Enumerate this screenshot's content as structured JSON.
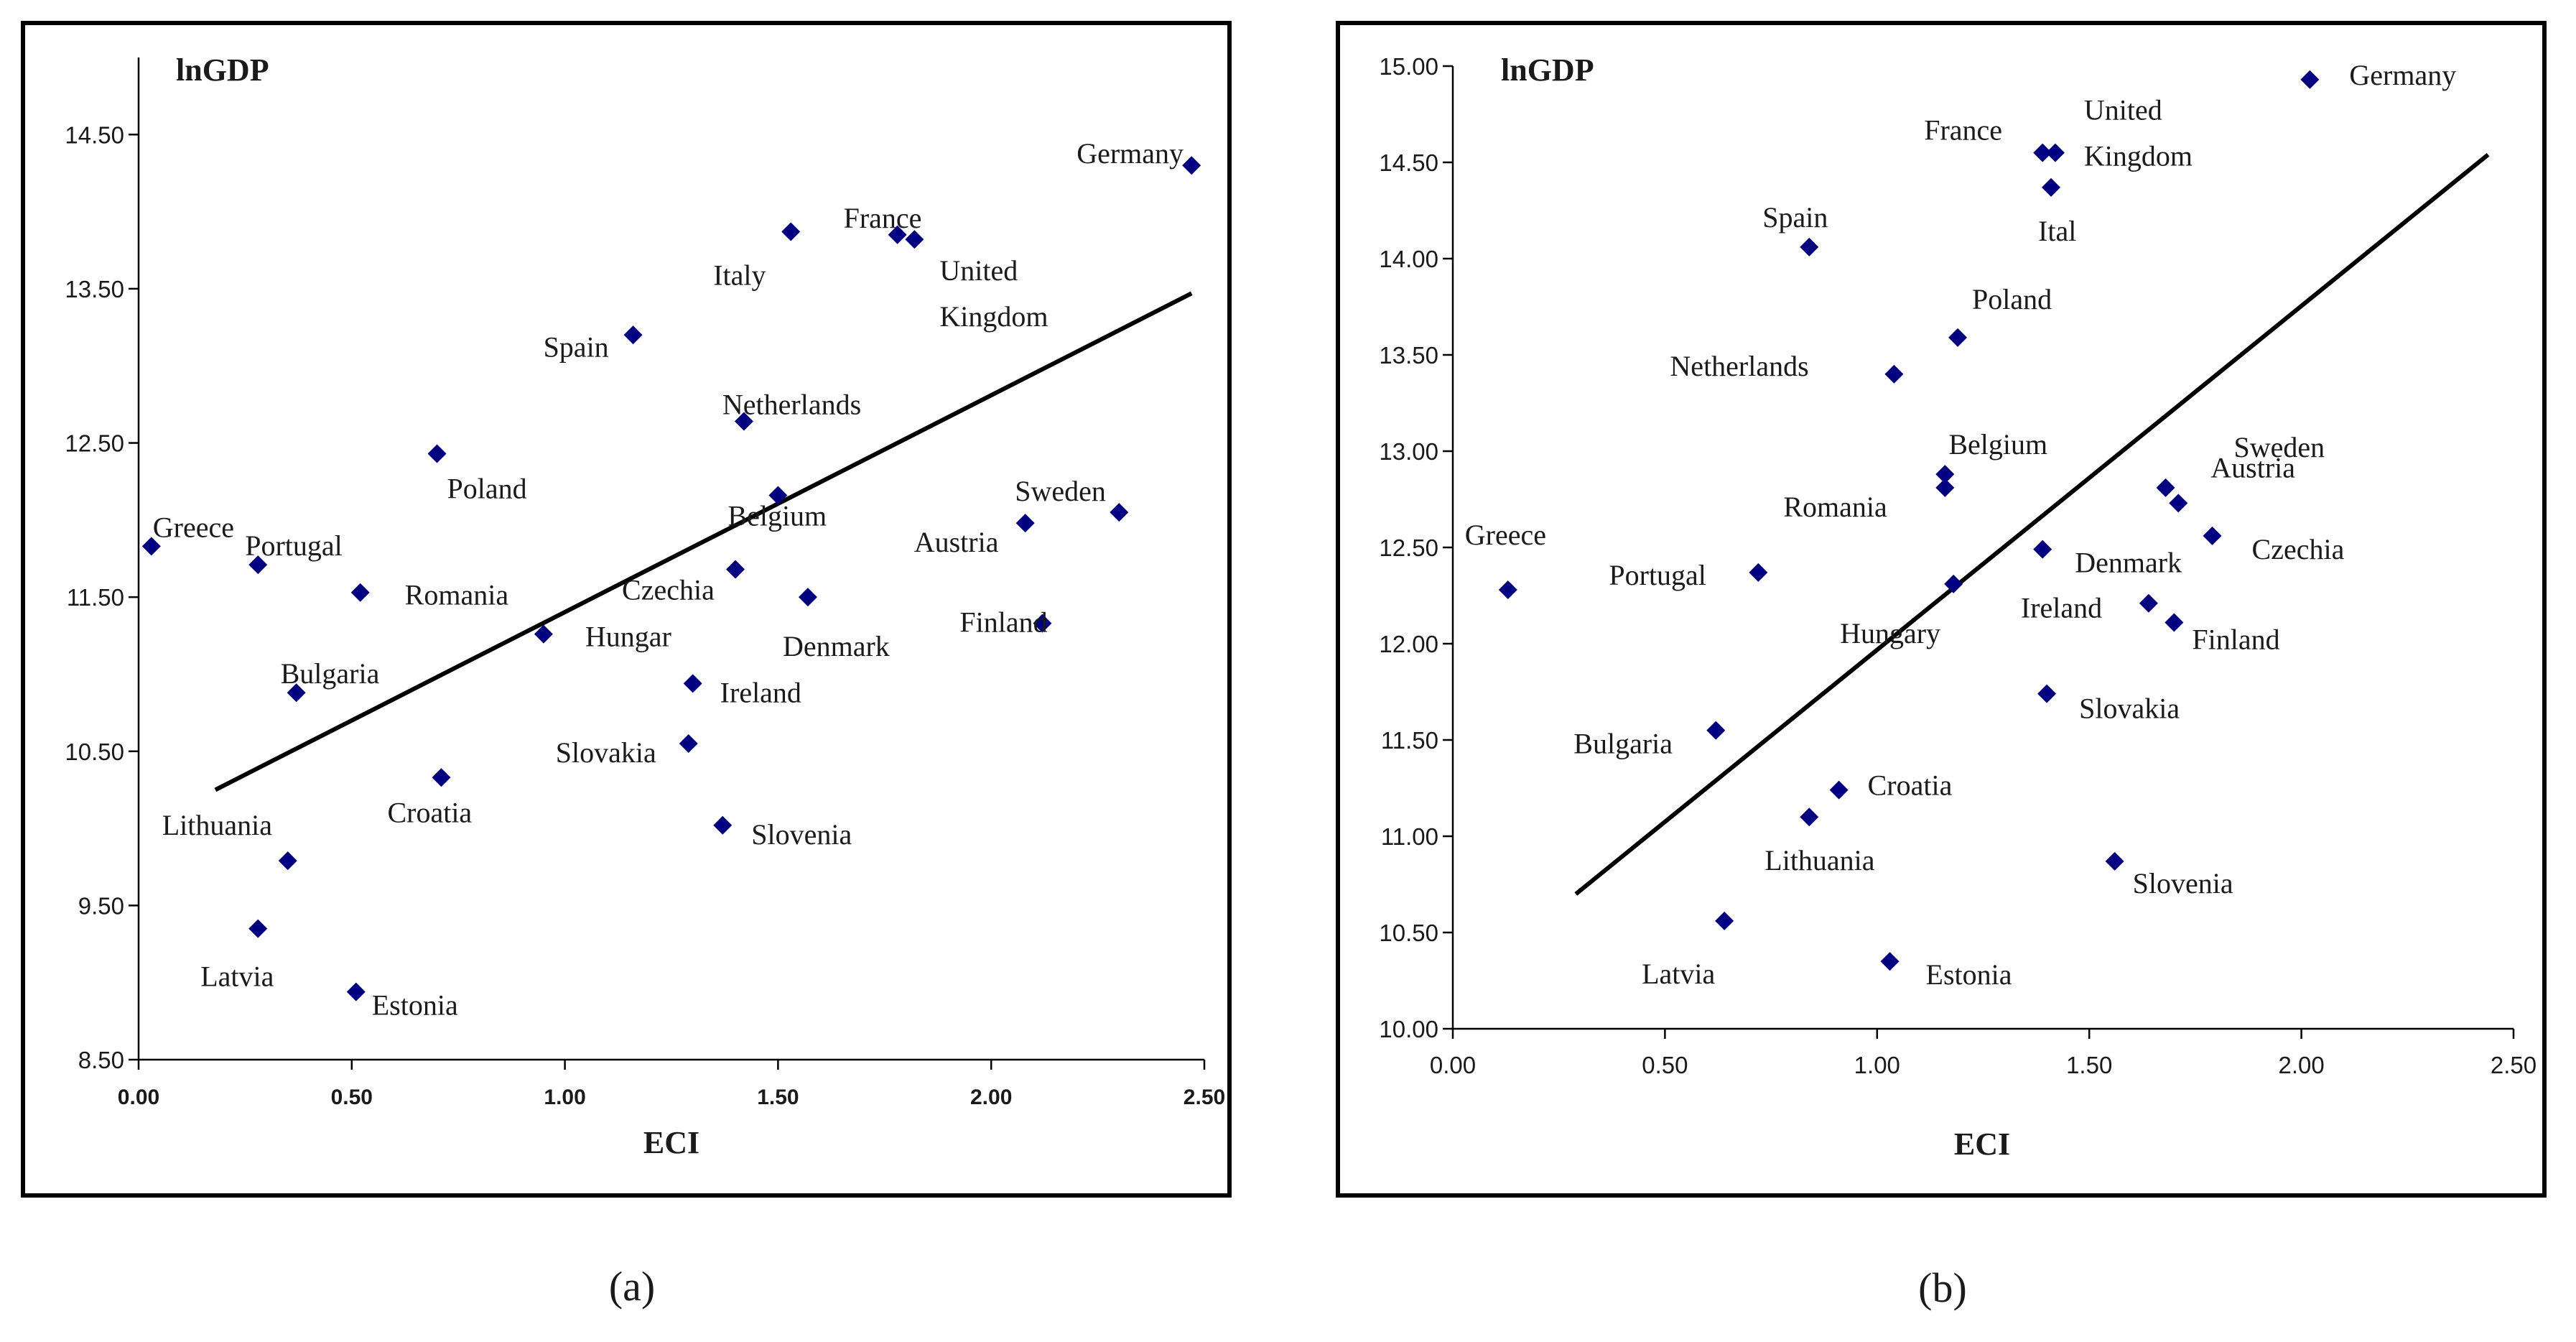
{
  "chart_data": [
    {
      "type": "scatter",
      "panel_caption": "(a)",
      "xlabel": "ECI",
      "ylabel": "lnGDP",
      "xlim": [
        0,
        2.5
      ],
      "ylim": [
        8.5,
        15.0
      ],
      "x_ticks": [
        0,
        0.5,
        1,
        1.5,
        2,
        2.5
      ],
      "x_tick_labels": [
        "0.00",
        "0.50",
        "1.00",
        "1.50",
        "2.00",
        "2.50"
      ],
      "y_ticks": [
        8.5,
        9.5,
        10.5,
        11.5,
        12.5,
        13.5,
        14.5
      ],
      "y_tick_labels": [
        "8.50",
        "9.50",
        "10.50",
        "11.50",
        "12.50",
        "13.50",
        "14.50"
      ],
      "marker_color": "#000080",
      "trendline": {
        "x": [
          0.18,
          2.47
        ],
        "y": [
          10.25,
          13.47
        ]
      },
      "points": [
        {
          "label": "Germany",
          "x": 2.47,
          "y": 14.3
        },
        {
          "label": "France",
          "x": 1.78,
          "y": 13.85
        },
        {
          "label": "United\nKingdom",
          "x": 1.82,
          "y": 13.82
        },
        {
          "label": "Italy",
          "x": 1.53,
          "y": 13.87
        },
        {
          "label": "Spain",
          "x": 1.16,
          "y": 13.2
        },
        {
          "label": "Netherlands",
          "x": 1.42,
          "y": 12.64
        },
        {
          "label": "Poland",
          "x": 0.7,
          "y": 12.43
        },
        {
          "label": "Sweden",
          "x": 2.3,
          "y": 12.05
        },
        {
          "label": "Austria",
          "x": 2.08,
          "y": 11.98
        },
        {
          "label": "Belgium",
          "x": 1.5,
          "y": 12.16
        },
        {
          "label": "Greece",
          "x": 0.03,
          "y": 11.83
        },
        {
          "label": "Portugal",
          "x": 0.28,
          "y": 11.71
        },
        {
          "label": "Czechia",
          "x": 1.4,
          "y": 11.68
        },
        {
          "label": "Romania",
          "x": 0.52,
          "y": 11.53
        },
        {
          "label": "Denmark",
          "x": 1.57,
          "y": 11.5
        },
        {
          "label": "Finland",
          "x": 2.12,
          "y": 11.33
        },
        {
          "label": "Hungar",
          "x": 0.95,
          "y": 11.26
        },
        {
          "label": "Ireland",
          "x": 1.3,
          "y": 10.94
        },
        {
          "label": "Bulgaria",
          "x": 0.37,
          "y": 10.88
        },
        {
          "label": "Slovakia",
          "x": 1.29,
          "y": 10.55
        },
        {
          "label": "Croatia",
          "x": 0.71,
          "y": 10.33
        },
        {
          "label": "Slovenia",
          "x": 1.37,
          "y": 10.02
        },
        {
          "label": "Lithuania",
          "x": 0.35,
          "y": 9.79
        },
        {
          "label": "Latvia",
          "x": 0.28,
          "y": 9.35
        },
        {
          "label": "Estonia",
          "x": 0.51,
          "y": 8.94
        }
      ]
    },
    {
      "type": "scatter",
      "panel_caption": "(b)",
      "xlabel": "ECI",
      "ylabel": "lnGDP",
      "xlim": [
        0,
        2.5
      ],
      "ylim": [
        10.0,
        15.0
      ],
      "x_ticks": [
        0,
        0.5,
        1,
        1.5,
        2,
        2.5
      ],
      "x_tick_labels": [
        "0.00",
        "0.50",
        "1.00",
        "1.50",
        "2.00",
        "2.50"
      ],
      "y_ticks": [
        10.0,
        10.5,
        11.0,
        11.5,
        12.0,
        12.5,
        13.0,
        13.5,
        14.0,
        14.5,
        15.0
      ],
      "y_tick_labels": [
        "10.00",
        "10.50",
        "11.00",
        "11.50",
        "12.00",
        "12.50",
        "13.00",
        "13.50",
        "14.00",
        "14.50",
        "15.00"
      ],
      "marker_color": "#000080",
      "trendline": {
        "x": [
          0.29,
          2.44
        ],
        "y": [
          10.7,
          14.54
        ]
      },
      "points": [
        {
          "label": "Germany",
          "x": 2.02,
          "y": 14.93
        },
        {
          "label": "France",
          "x": 1.39,
          "y": 14.55
        },
        {
          "label": "United\nKingdom",
          "x": 1.42,
          "y": 14.55
        },
        {
          "label": "Ital",
          "x": 1.41,
          "y": 14.37
        },
        {
          "label": "Spain",
          "x": 0.84,
          "y": 14.06
        },
        {
          "label": "Poland",
          "x": 1.19,
          "y": 13.59
        },
        {
          "label": "Netherlands",
          "x": 1.04,
          "y": 13.4
        },
        {
          "label": "Belgium",
          "x": 1.16,
          "y": 12.88
        },
        {
          "label": "Romania",
          "x": 1.16,
          "y": 12.81
        },
        {
          "label": "Sweden",
          "x": 1.68,
          "y": 12.81
        },
        {
          "label": "Austria",
          "x": 1.71,
          "y": 12.73
        },
        {
          "label": "Czechia",
          "x": 1.79,
          "y": 12.56
        },
        {
          "label": "Denmark",
          "x": 1.39,
          "y": 12.49
        },
        {
          "label": "Greece",
          "x": 0.13,
          "y": 12.28
        },
        {
          "label": "Portugal",
          "x": 0.72,
          "y": 12.37
        },
        {
          "label": "Hungary",
          "x": 1.18,
          "y": 12.31
        },
        {
          "label": "Ireland",
          "x": 1.64,
          "y": 12.21
        },
        {
          "label": "Finland",
          "x": 1.7,
          "y": 12.11
        },
        {
          "label": "Slovakia",
          "x": 1.4,
          "y": 11.74
        },
        {
          "label": "Bulgaria",
          "x": 0.62,
          "y": 11.55
        },
        {
          "label": "Croatia",
          "x": 0.91,
          "y": 11.24
        },
        {
          "label": "Lithuania",
          "x": 0.84,
          "y": 11.1
        },
        {
          "label": "Slovenia",
          "x": 1.56,
          "y": 10.87
        },
        {
          "label": "Latvia",
          "x": 0.64,
          "y": 10.56
        },
        {
          "label": "Estonia",
          "x": 1.03,
          "y": 10.35
        }
      ]
    }
  ]
}
